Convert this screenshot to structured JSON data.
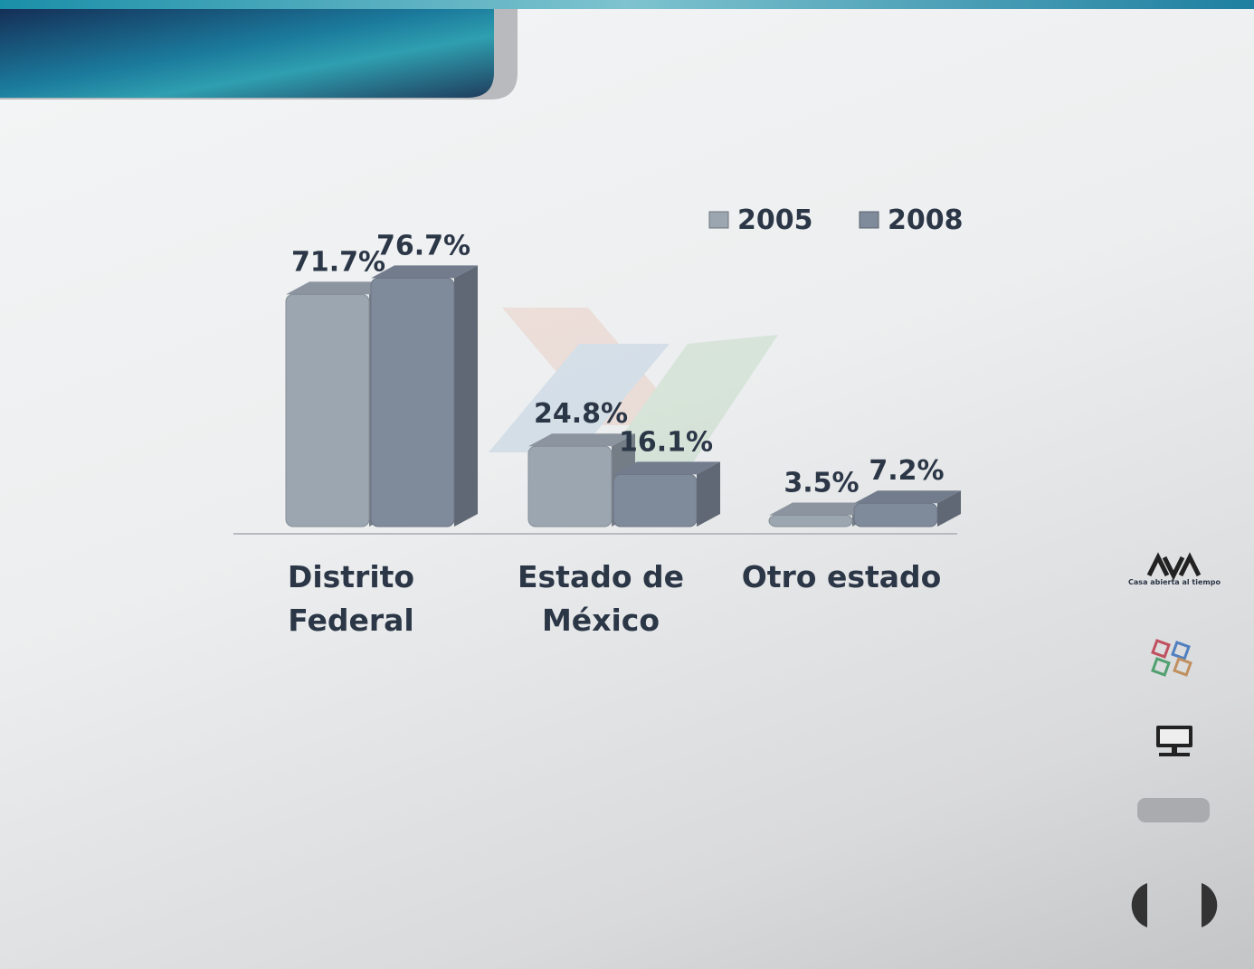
{
  "chart_data": {
    "type": "bar",
    "categories": [
      "Distrito Federal",
      "Estado de México",
      "Otro estado"
    ],
    "series": [
      {
        "name": "2005",
        "color": "#9ba6b1",
        "values": [
          71.7,
          24.8,
          3.5
        ],
        "value_labels": [
          "71.7%",
          "24.8%",
          "3.5%"
        ]
      },
      {
        "name": "2008",
        "color": "#7f8a9b",
        "values": [
          76.7,
          16.1,
          7.2
        ],
        "value_labels": [
          "76.7%",
          "16.1%",
          "7.2%"
        ]
      }
    ]
  },
  "sidebar": {
    "logo_caption": "Casa abierta al tiempo"
  }
}
